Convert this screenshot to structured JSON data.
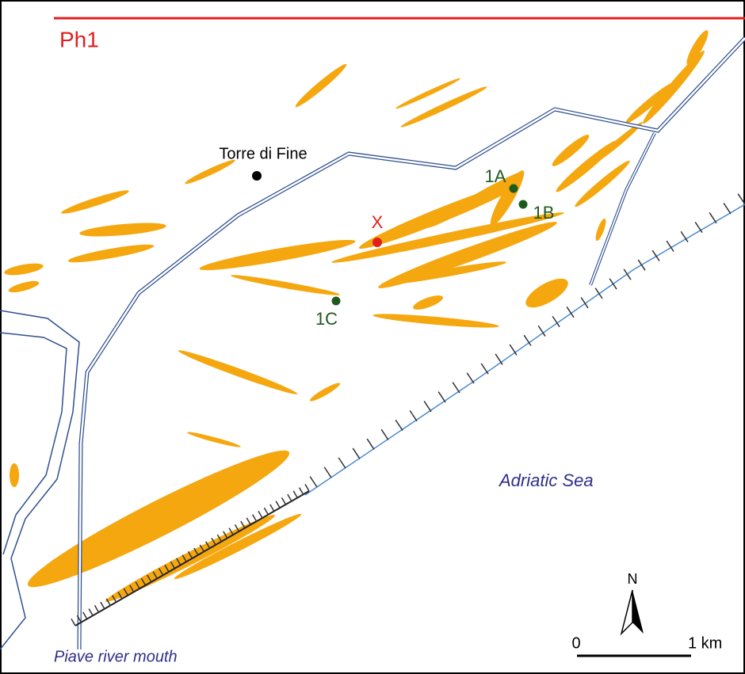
{
  "phase": "Ph1",
  "places": [
    {
      "label": "Torre di Fine"
    }
  ],
  "points": [
    {
      "label": "X"
    },
    {
      "label": "1A"
    },
    {
      "label": "1B"
    },
    {
      "label": "1C"
    }
  ],
  "water": [
    {
      "label": "Adriatic Sea"
    },
    {
      "label": "Piave river mouth"
    }
  ],
  "north": "N",
  "scale": {
    "start": "0",
    "end": "1 km"
  }
}
